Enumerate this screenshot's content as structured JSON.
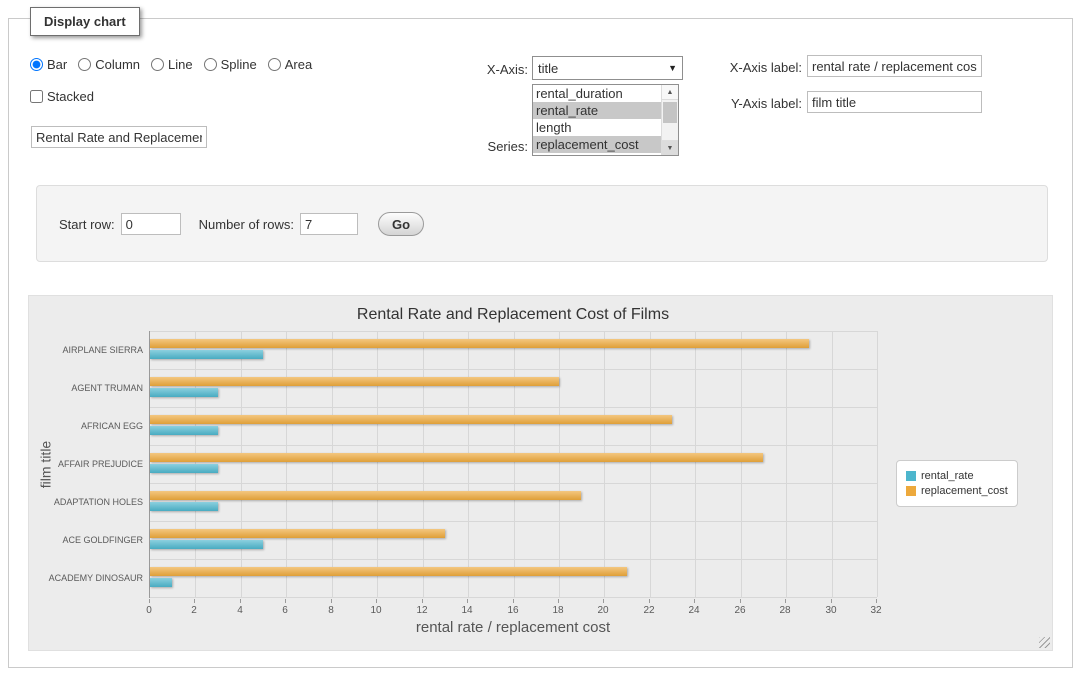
{
  "form": {
    "legend": "Display chart",
    "chart_types": [
      {
        "label": "Bar",
        "checked": true
      },
      {
        "label": "Column",
        "checked": false
      },
      {
        "label": "Line",
        "checked": false
      },
      {
        "label": "Spline",
        "checked": false
      },
      {
        "label": "Area",
        "checked": false
      }
    ],
    "stacked": {
      "label": "Stacked",
      "checked": false
    },
    "chart_title_input": {
      "value": "Rental Rate and Replacemer"
    },
    "x_axis": {
      "label": "X-Axis:",
      "value": "title"
    },
    "series": {
      "label": "Series:",
      "options": [
        {
          "label": "rental_duration",
          "selected": false
        },
        {
          "label": "rental_rate",
          "selected": true
        },
        {
          "label": "length",
          "selected": false
        },
        {
          "label": "replacement_cost",
          "selected": true
        }
      ]
    },
    "x_axis_label": {
      "label": "X-Axis label:",
      "value": "rental rate / replacement cost"
    },
    "y_axis_label": {
      "label": "Y-Axis label:",
      "value": "film title"
    }
  },
  "rows_panel": {
    "start_row": {
      "label": "Start row:",
      "value": "0"
    },
    "number_of_rows": {
      "label": "Number of rows:",
      "value": "7"
    },
    "go_button": "Go"
  },
  "chart_data": {
    "type": "bar",
    "title": "Rental Rate and Replacement Cost of Films",
    "categories": [
      "AIRPLANE SIERRA",
      "AGENT TRUMAN",
      "AFRICAN EGG",
      "AFFAIR PREJUDICE",
      "ADAPTATION HOLES",
      "ACE GOLDFINGER",
      "ACADEMY DINOSAUR"
    ],
    "series": [
      {
        "name": "rental_rate",
        "color": "#4db6cd",
        "values": [
          4.99,
          2.99,
          2.99,
          2.99,
          2.99,
          4.99,
          0.99
        ]
      },
      {
        "name": "replacement_cost",
        "color": "#eda93c",
        "values": [
          28.99,
          17.99,
          22.99,
          26.99,
          18.99,
          12.99,
          20.99
        ]
      }
    ],
    "xlabel": "rental rate / replacement cost",
    "ylabel": "film title",
    "xlim": [
      0,
      32
    ],
    "xticks": [
      0,
      2,
      4,
      6,
      8,
      10,
      12,
      14,
      16,
      18,
      20,
      22,
      24,
      26,
      28,
      30,
      32
    ],
    "legend_position": "right",
    "grid": true,
    "bar_group_order": [
      "replacement_cost",
      "rental_rate"
    ]
  }
}
